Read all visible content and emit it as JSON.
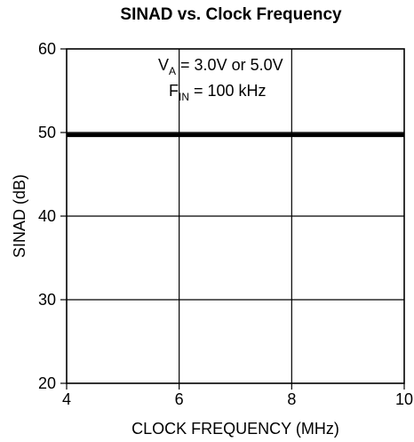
{
  "chart_data": {
    "type": "line",
    "title": "SINAD vs. Clock Frequency",
    "xlabel": "CLOCK FREQUENCY (MHz)",
    "ylabel": "SINAD (dB)",
    "xlim": [
      4,
      10
    ],
    "ylim": [
      20,
      60
    ],
    "xticks": [
      4,
      6,
      8,
      10
    ],
    "yticks": [
      20,
      30,
      40,
      50,
      60
    ],
    "grid": true,
    "series": [
      {
        "x": [
          4,
          10
        ],
        "y": [
          49.7,
          49.7
        ]
      }
    ],
    "annotation": {
      "line1": {
        "prefix": "V",
        "subscript": "A",
        "suffix": " = 3.0V or 5.0V"
      },
      "line2": {
        "prefix": "F",
        "subscript": "IN",
        "suffix": " = 100 kHz"
      }
    },
    "colors": {
      "line": "#000000",
      "grid": "#000000",
      "background": "#ffffff"
    }
  }
}
